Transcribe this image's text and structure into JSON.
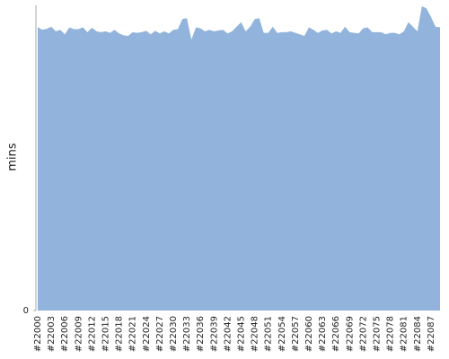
{
  "chart_data": {
    "type": "area",
    "y_label": "mins",
    "color": "#91b3dc",
    "categories": [
      "#22000",
      null,
      null,
      "#22003",
      null,
      null,
      "#22006",
      null,
      null,
      "#22009",
      null,
      null,
      "#22012",
      null,
      null,
      "#22015",
      null,
      null,
      "#22018",
      null,
      null,
      "#22021",
      null,
      null,
      "#22024",
      null,
      null,
      "#22027",
      null,
      null,
      "#22030",
      null,
      null,
      "#22033",
      null,
      null,
      "#22036",
      null,
      null,
      "#22039",
      null,
      null,
      "#22042",
      null,
      null,
      "#22045",
      null,
      null,
      "#22048",
      null,
      null,
      "#22051",
      null,
      null,
      "#22054",
      null,
      null,
      "#22057",
      null,
      null,
      "#22060",
      null,
      null,
      "#22063",
      null,
      null,
      "#22066",
      null,
      null,
      "#22069",
      null,
      null,
      "#22072",
      null,
      null,
      "#22075",
      null,
      null,
      "#22078",
      null,
      null,
      "#22081",
      null,
      null,
      "#22084",
      null,
      null,
      "#22087",
      null,
      null
    ],
    "values": [
      9.29,
      9.2,
      9.23,
      9.3,
      9.15,
      9.2,
      9.05,
      9.28,
      9.22,
      9.22,
      9.28,
      9.12,
      9.27,
      9.15,
      9.12,
      9.15,
      9.1,
      9.2,
      9.08,
      9.02,
      9.0,
      9.12,
      9.1,
      9.12,
      9.17,
      9.05,
      9.17,
      9.08,
      9.15,
      9.08,
      9.2,
      9.22,
      9.55,
      9.58,
      8.88,
      9.28,
      9.25,
      9.15,
      9.2,
      9.15,
      9.18,
      9.2,
      9.08,
      9.15,
      9.3,
      9.45,
      9.15,
      9.3,
      9.55,
      9.58,
      9.1,
      9.1,
      9.3,
      9.1,
      9.12,
      9.12,
      9.15,
      9.1,
      9.05,
      9.0,
      9.28,
      9.2,
      9.1,
      9.18,
      9.2,
      9.08,
      9.15,
      9.1,
      9.3,
      9.12,
      9.1,
      9.08,
      9.25,
      9.28,
      9.12,
      9.12,
      9.12,
      9.05,
      9.1,
      9.1,
      9.05,
      9.15,
      9.45,
      9.3,
      9.15,
      9.97,
      9.9,
      9.62,
      9.3,
      9.28
    ],
    "ylim": [
      0,
      10
    ],
    "yticks": [
      0
    ],
    "grid": false
  }
}
